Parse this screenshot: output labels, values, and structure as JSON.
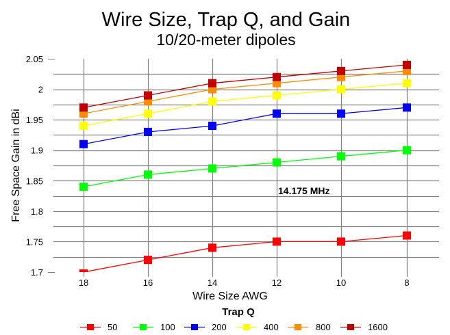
{
  "chart_data": {
    "type": "line",
    "title": "Wire Size, Trap Q, and Gain",
    "subtitle": "10/20-meter dipoles",
    "xlabel": "Wire Size AWG",
    "ylabel": "Free Space Gain in dBi",
    "categories": [
      "18",
      "16",
      "14",
      "12",
      "10",
      "8"
    ],
    "ylim": [
      1.7,
      2.05
    ],
    "yticks": [
      "2.05",
      "2",
      "1.95",
      "1.9",
      "1.85",
      "1.8",
      "1.75",
      "1.7"
    ],
    "ytick_values": [
      2.05,
      2.0,
      1.95,
      1.9,
      1.85,
      1.8,
      1.75,
      1.7
    ],
    "minor_grid_step": 0.025,
    "grid": true,
    "annotation": "14.175 MHz",
    "legend_title": "Trap Q",
    "legend_position": "bottom",
    "series": [
      {
        "name": "50",
        "color": "#ff0000",
        "values": [
          1.7,
          1.72,
          1.74,
          1.75,
          1.75,
          1.76
        ]
      },
      {
        "name": "100",
        "color": "#00ff00",
        "values": [
          1.84,
          1.86,
          1.87,
          1.88,
          1.89,
          1.9
        ]
      },
      {
        "name": "200",
        "color": "#0000ff",
        "values": [
          1.91,
          1.93,
          1.94,
          1.96,
          1.96,
          1.97
        ]
      },
      {
        "name": "400",
        "color": "#ffff00",
        "values": [
          1.94,
          1.96,
          1.98,
          1.99,
          2.0,
          2.01
        ]
      },
      {
        "name": "800",
        "color": "#ff8c00",
        "values": [
          1.96,
          1.98,
          2.0,
          2.01,
          2.02,
          2.03
        ]
      },
      {
        "name": "1600",
        "color": "#c00000",
        "values": [
          1.97,
          1.99,
          2.01,
          2.02,
          2.03,
          2.04
        ]
      }
    ]
  }
}
